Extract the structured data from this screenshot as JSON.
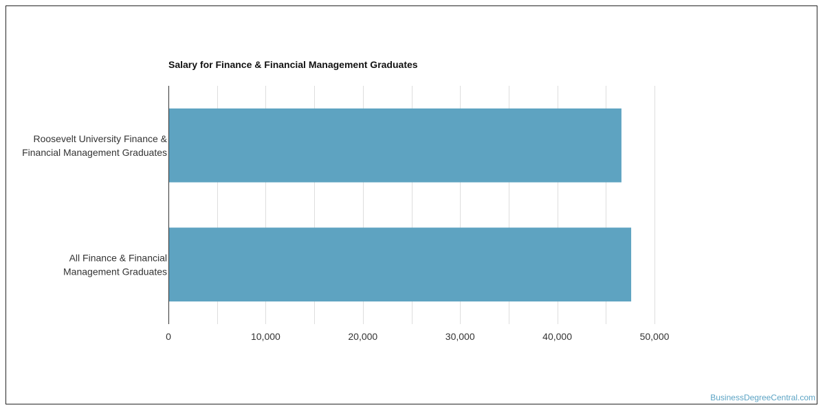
{
  "chart_data": {
    "type": "bar",
    "orientation": "horizontal",
    "title": "Salary for Finance & Financial Management Graduates",
    "categories": [
      [
        "Roosevelt University Finance &",
        "Financial Management Graduates"
      ],
      [
        "All Finance & Financial",
        "Management Graduates"
      ]
    ],
    "values": [
      46600,
      47600
    ],
    "xlim": [
      0,
      50000
    ],
    "xticks": [
      0,
      10000,
      20000,
      30000,
      40000,
      50000
    ],
    "xtick_labels": [
      "0",
      "10,000",
      "20,000",
      "30,000",
      "40,000",
      "50,000"
    ],
    "grid": true,
    "bar_color": "#5ea3c1"
  },
  "credit": "BusinessDegreeCentral.com"
}
